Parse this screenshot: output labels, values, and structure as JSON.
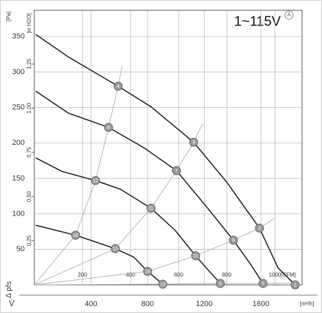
{
  "chart_data": {
    "type": "line",
    "title": "1~115V",
    "badge": "A",
    "y_label": "Δ pfs",
    "y_unit": "[Pa]",
    "y2_unit": "[in H2O]",
    "x_label": "V̇",
    "x_unit": "[m³/h]",
    "x2_unit": "[CFM]",
    "xlim": [
      0,
      1891
    ],
    "xticks": [
      400,
      800,
      1200,
      1600
    ],
    "x2lim": [
      0,
      1113
    ],
    "x2ticks": [
      200,
      400,
      600,
      800,
      1000
    ],
    "ylim": [
      0,
      387
    ],
    "yticks": [
      50,
      100,
      150,
      200,
      250,
      300,
      350
    ],
    "y2lim": [
      0,
      1.554
    ],
    "y2ticks": [
      {
        "value": 0.25,
        "label": "0,25"
      },
      {
        "value": 0.5,
        "label": "0,50"
      },
      {
        "value": 0.75,
        "label": "0,75"
      },
      {
        "value": 1.0,
        "label": "1,00"
      },
      {
        "value": 1.25,
        "label": "1,25"
      }
    ],
    "grid": true,
    "series": [
      {
        "color": "#222",
        "x": [
          10,
          242,
          592,
          824,
          1125,
          1358,
          1590,
          1721,
          1842
        ],
        "values": [
          353,
          321,
          280,
          251,
          201,
          145,
          80,
          24,
          0
        ]
      },
      {
        "color": "#222",
        "x": [
          10,
          242,
          524,
          776,
          1004,
          1212,
          1406,
          1527,
          1615
        ],
        "values": [
          273,
          242,
          222,
          193,
          161,
          111,
          63,
          29,
          2
        ]
      },
      {
        "color": "#222",
        "x": [
          10,
          194,
          432,
          606,
          824,
          994,
          1139,
          1236,
          1314
        ],
        "values": [
          179,
          160,
          147,
          135,
          108,
          77,
          41,
          19,
          2
        ]
      },
      {
        "color": "#222",
        "x": [
          10,
          291,
          572,
          703,
          800,
          907
        ],
        "values": [
          84,
          70,
          51,
          39,
          19,
          1
        ]
      },
      {
        "color": "#aaa",
        "x": [
          0,
          291,
          432,
          524,
          592,
          621
        ],
        "values": [
          0,
          70,
          147,
          222,
          280,
          309
        ]
      },
      {
        "color": "#aaa",
        "x": [
          0,
          572,
          824,
          1004,
          1125,
          1188
        ],
        "values": [
          0,
          51,
          108,
          161,
          201,
          227
        ]
      },
      {
        "color": "#aaa",
        "x": [
          0,
          800,
          1139,
          1406,
          1590,
          1697
        ],
        "values": [
          0,
          19,
          41,
          63,
          80,
          94
        ]
      },
      {
        "color": "#aaa",
        "x": [
          0,
          907,
          1314,
          1615,
          1842
        ],
        "values": [
          0,
          1,
          2,
          2,
          3
        ]
      }
    ],
    "operating_points": [
      {
        "label": "1",
        "x": 1842,
        "y": 0
      },
      {
        "label": "2",
        "x": 1590,
        "y": 80
      },
      {
        "label": "3",
        "x": 1125,
        "y": 201
      },
      {
        "label": "4",
        "x": 592,
        "y": 280
      },
      {
        "label": "5",
        "x": 1615,
        "y": 2
      },
      {
        "label": "6",
        "x": 1406,
        "y": 63
      },
      {
        "label": "7",
        "x": 1004,
        "y": 161
      },
      {
        "label": "8",
        "x": 524,
        "y": 222
      },
      {
        "label": "9",
        "x": 1314,
        "y": 2
      },
      {
        "label": "10",
        "x": 1139,
        "y": 41
      },
      {
        "label": "11",
        "x": 824,
        "y": 108
      },
      {
        "label": "12",
        "x": 432,
        "y": 147
      },
      {
        "label": "13",
        "x": 907,
        "y": 1
      },
      {
        "label": "14",
        "x": 800,
        "y": 19
      },
      {
        "label": "15",
        "x": 572,
        "y": 51
      },
      {
        "label": "16",
        "x": 291,
        "y": 70
      }
    ]
  }
}
